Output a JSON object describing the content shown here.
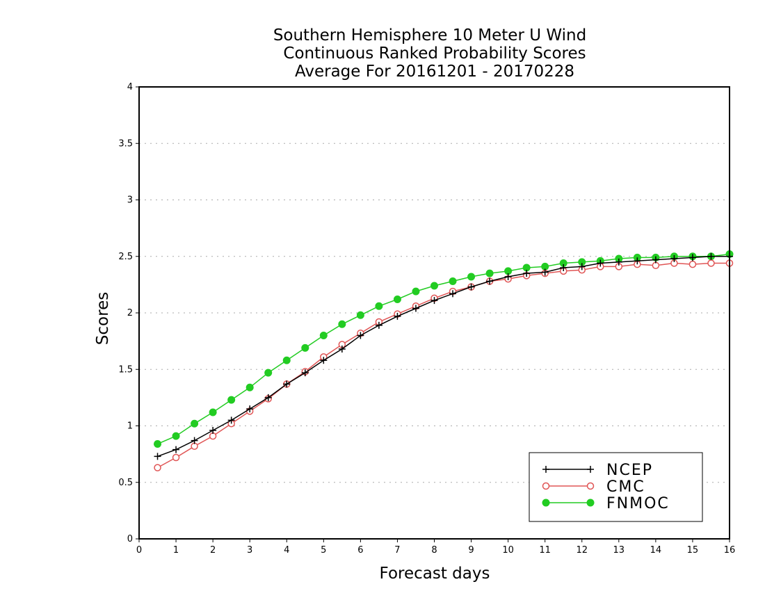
{
  "chart_data": {
    "type": "line",
    "title_lines": [
      "Southern Hemisphere 10 Meter U Wind",
      "Continuous Ranked Probability Scores",
      "Average For 20161201 - 20170228"
    ],
    "xlabel": "Forecast days",
    "ylabel": "Scores",
    "xlim": [
      0,
      16
    ],
    "ylim": [
      0,
      4
    ],
    "x_ticks": [
      "0",
      "1",
      "2",
      "3",
      "4",
      "5",
      "6",
      "7",
      "8",
      "9",
      "10",
      "11",
      "12",
      "13",
      "14",
      "15",
      "16"
    ],
    "y_ticks": [
      "0",
      "0.5",
      "1",
      "1.5",
      "2",
      "2.5",
      "3",
      "3.5",
      "4"
    ],
    "grid": "horizontal dotted",
    "legend_position": "bottom-right",
    "x": [
      0.5,
      1,
      1.5,
      2,
      2.5,
      3,
      3.5,
      4,
      4.5,
      5,
      5.5,
      6,
      6.5,
      7,
      7.5,
      8,
      8.5,
      9,
      9.5,
      10,
      10.5,
      11,
      11.5,
      12,
      12.5,
      13,
      13.5,
      14,
      14.5,
      15,
      15.5,
      16
    ],
    "series": [
      {
        "name": "NCEP",
        "color": "#000000",
        "marker": "plus",
        "values": [
          0.73,
          0.79,
          0.87,
          0.96,
          1.05,
          1.15,
          1.25,
          1.37,
          1.47,
          1.58,
          1.68,
          1.8,
          1.89,
          1.97,
          2.04,
          2.11,
          2.17,
          2.23,
          2.28,
          2.32,
          2.35,
          2.36,
          2.4,
          2.41,
          2.44,
          2.45,
          2.46,
          2.47,
          2.48,
          2.49,
          2.5,
          2.5
        ]
      },
      {
        "name": "CMC",
        "color": "#e05555",
        "marker": "open-circle",
        "values": [
          0.63,
          0.72,
          0.82,
          0.91,
          1.02,
          1.13,
          1.24,
          1.37,
          1.48,
          1.61,
          1.72,
          1.82,
          1.92,
          1.99,
          2.06,
          2.13,
          2.19,
          2.23,
          2.28,
          2.3,
          2.33,
          2.35,
          2.37,
          2.38,
          2.41,
          2.41,
          2.43,
          2.42,
          2.44,
          2.43,
          2.44,
          2.44
        ]
      },
      {
        "name": "FNMOC",
        "color": "#22cc22",
        "marker": "filled-circle",
        "values": [
          0.84,
          0.91,
          1.02,
          1.12,
          1.23,
          1.34,
          1.47,
          1.58,
          1.69,
          1.8,
          1.9,
          1.98,
          2.06,
          2.12,
          2.19,
          2.24,
          2.28,
          2.32,
          2.35,
          2.37,
          2.4,
          2.41,
          2.44,
          2.45,
          2.46,
          2.48,
          2.49,
          2.49,
          2.5,
          2.5,
          2.5,
          2.52
        ]
      }
    ]
  }
}
